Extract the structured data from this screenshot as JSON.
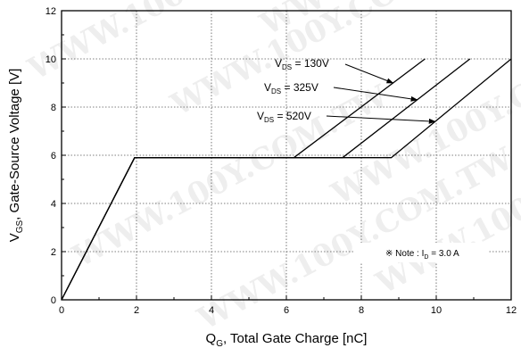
{
  "chart_data": {
    "type": "line",
    "xlabel": {
      "main": "Q",
      "sub": "G",
      "rest": ", Total Gate Charge [nC]"
    },
    "ylabel": {
      "main": "V",
      "sub": "GS",
      "rest": ", Gate-Source Voltage [V]"
    },
    "xlim": [
      0,
      12
    ],
    "ylim": [
      0,
      12
    ],
    "xticks": [
      "0",
      "2",
      "4",
      "6",
      "8",
      "10",
      "12"
    ],
    "yticks": [
      "0",
      "2",
      "4",
      "6",
      "8",
      "10",
      "12"
    ],
    "grid": "dotted",
    "series": [
      {
        "name": "V_DS = 130V",
        "points": [
          [
            0,
            0
          ],
          [
            1.95,
            5.9
          ],
          [
            6.2,
            5.9
          ],
          [
            9.7,
            10.0
          ]
        ]
      },
      {
        "name": "V_DS = 325V",
        "points": [
          [
            0,
            0
          ],
          [
            1.95,
            5.9
          ],
          [
            7.5,
            5.9
          ],
          [
            10.9,
            10.0
          ]
        ]
      },
      {
        "name": "V_DS = 520V",
        "points": [
          [
            0,
            0
          ],
          [
            1.95,
            5.9
          ],
          [
            8.8,
            5.9
          ],
          [
            12.0,
            10.0
          ]
        ]
      }
    ],
    "annotations": [
      {
        "main": "V",
        "sub": "DS",
        "rest": " = 130V"
      },
      {
        "main": "V",
        "sub": "DS",
        "rest": " = 325V"
      },
      {
        "main": "V",
        "sub": "DS",
        "rest": " = 520V"
      }
    ],
    "note": {
      "prefix": "※ Note : I",
      "sub": "D",
      "rest": " = 3.0 A"
    }
  },
  "watermark": "WWW.100Y.COM.TW"
}
